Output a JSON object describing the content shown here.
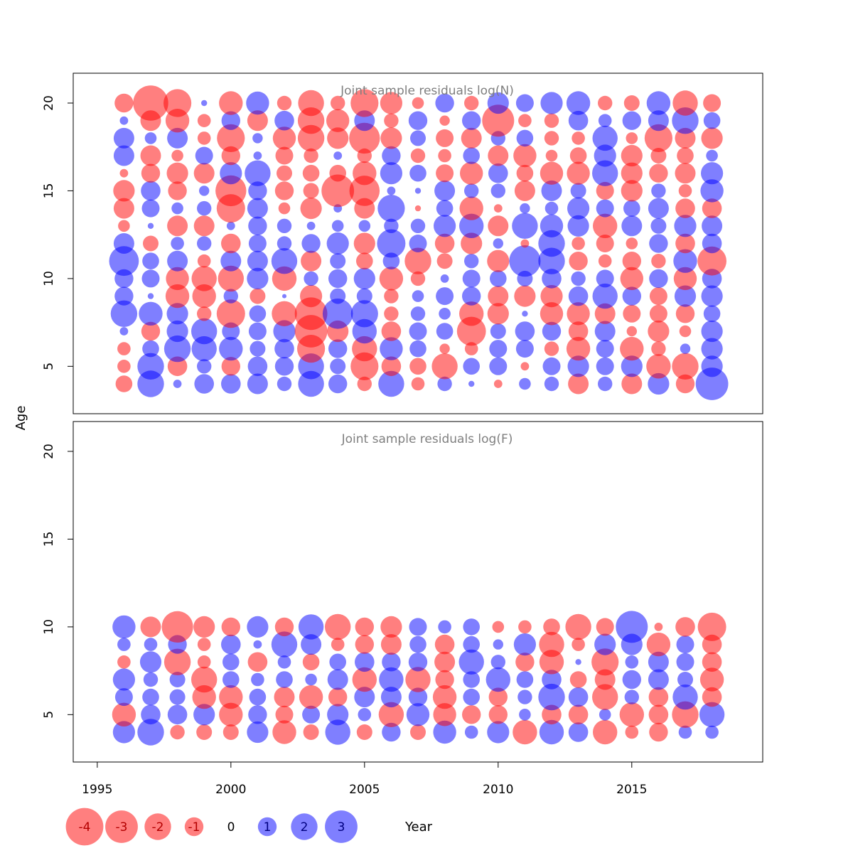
{
  "chart_data": {
    "type": "scatter",
    "subtype": "bubble",
    "xlabel": "Year",
    "ylabel": "Age",
    "xlim": [
      1994.1,
      2019.9
    ],
    "x_ticks": [
      1995,
      2000,
      2005,
      2010,
      2015
    ],
    "x_tick_labels": [
      "1995",
      "2000",
      "2005",
      "2010",
      "2015"
    ],
    "y_ticks": [
      5,
      10,
      15,
      20
    ],
    "y_tick_labels": [
      "5",
      "10",
      "15",
      "20"
    ],
    "colors": {
      "negative": "#ff0000",
      "positive": "#0000ff",
      "opacity": 0.5,
      "title": "#7f7f7f"
    },
    "years": [
      1996,
      1997,
      1998,
      1999,
      2000,
      2001,
      2002,
      2003,
      2004,
      2005,
      2006,
      2007,
      2008,
      2009,
      2010,
      2011,
      2012,
      2013,
      2014,
      2015,
      2016,
      2017,
      2018
    ],
    "legend": {
      "placement": "bottom",
      "entries": [
        {
          "label": "-4",
          "value": -4
        },
        {
          "label": "-3",
          "value": -3
        },
        {
          "label": "-2",
          "value": -2
        },
        {
          "label": "-1",
          "value": -1
        },
        {
          "label": "0",
          "value": 0
        },
        {
          "label": "1",
          "value": 1
        },
        {
          "label": "2",
          "value": 2
        },
        {
          "label": "3",
          "value": 3
        }
      ]
    },
    "panels": [
      {
        "title": "Joint sample residuals log(N)",
        "ylim": [
          2.3,
          21.7
        ],
        "ages": [
          4,
          5,
          6,
          7,
          8,
          9,
          10,
          11,
          12,
          13,
          14,
          15,
          16,
          17,
          18,
          19,
          20
        ],
        "residuals": [
          [
            -0.8,
            -0.5,
            -0.5,
            0.2,
            2.0,
            1.0,
            1.0,
            2.5,
            1.2,
            -0.4,
            -1.2,
            -1.3,
            -0.2,
            1.2,
            1.2,
            0.2,
            -1.0
          ],
          [
            2.0,
            2.0,
            0.8,
            -1.0,
            1.6,
            0.1,
            0.9,
            0.8,
            -0.7,
            0.1,
            0.9,
            1.1,
            -1.0,
            -1.2,
            0.4,
            -1.2,
            -3.5
          ],
          [
            0.2,
            -1.1,
            2.0,
            1.3,
            1.3,
            -1.6,
            -1.5,
            1.2,
            0.5,
            -1.2,
            0.4,
            -1.0,
            -1.3,
            -0.4,
            1.2,
            -1.6,
            -2.2
          ],
          [
            1.1,
            0.6,
            1.8,
            1.9,
            -0.6,
            -1.6,
            -1.8,
            -0.5,
            0.6,
            -1.2,
            0.6,
            0.3,
            -1.2,
            0.9,
            -0.5,
            -0.5,
            0.1
          ],
          [
            1.1,
            -1.0,
            1.6,
            0.9,
            -2.3,
            0.6,
            -1.9,
            1.2,
            -1.1,
            0.2,
            -2.3,
            -2.7,
            1.4,
            -1.0,
            -2.2,
            1.0,
            -1.6
          ],
          [
            1.2,
            1.1,
            0.7,
            0.9,
            0.8,
            -0.7,
            1.3,
            1.2,
            0.9,
            1.0,
            1.2,
            1.0,
            1.9,
            0.2,
            0.3,
            -1.2,
            1.5
          ],
          [
            0.6,
            1.0,
            1.1,
            1.4,
            -1.8,
            0.05,
            -1.7,
            1.9,
            0.6,
            0.6,
            -0.4,
            -1.0,
            -0.7,
            -0.9,
            -1.5,
            1.1,
            -0.6
          ],
          [
            1.9,
            1.9,
            -2.2,
            -3.0,
            -3.0,
            -1.4,
            0.6,
            -1.2,
            1.0,
            0.2,
            -1.3,
            -0.7,
            -0.8,
            -0.6,
            -2.0,
            -2.0,
            -1.9
          ],
          [
            1.0,
            0.7,
            1.0,
            -1.3,
            2.6,
            0.7,
            1.0,
            0.7,
            1.4,
            0.4,
            0.2,
            -3.0,
            -0.8,
            0.2,
            -1.3,
            -1.5,
            -0.6
          ],
          [
            -0.6,
            -2.2,
            -1.8,
            1.7,
            2.1,
            0.7,
            1.3,
            -0.8,
            -1.3,
            0.4,
            -1.2,
            -2.6,
            -1.6,
            -0.6,
            -2.7,
            1.2,
            -2.2
          ],
          [
            1.9,
            -1.1,
            1.5,
            -1.1,
            -0.6,
            -0.6,
            -1.6,
            0.8,
            2.3,
            0.6,
            2.1,
            0.2,
            1.4,
            1.0,
            -1.3,
            -0.6,
            -1.4
          ],
          [
            -0.5,
            -0.8,
            0.8,
            0.9,
            0.6,
            0.4,
            -0.6,
            -2.0,
            0.9,
            0.6,
            -0.1,
            0.1,
            0.8,
            -0.6,
            0.7,
            1.0,
            -0.4
          ],
          [
            0.6,
            -1.9,
            -0.3,
            0.8,
            0.4,
            0.9,
            0.2,
            -0.7,
            -1.1,
            1.4,
            0.8,
            1.2,
            -0.9,
            -0.5,
            -0.9,
            -0.3,
            1.0
          ],
          [
            0.1,
            0.8,
            -0.5,
            -2.4,
            -1.7,
            1.0,
            0.9,
            0.6,
            -1.3,
            1.7,
            -1.6,
            0.6,
            -1.5,
            0.8,
            -1.2,
            1.0,
            -0.6
          ],
          [
            -0.2,
            0.9,
            0.9,
            0.7,
            -1.3,
            -1.2,
            0.8,
            -1.4,
            0.3,
            -1.2,
            -0.2,
            0.6,
            1.1,
            -1.2,
            0.6,
            -2.9,
            1.3
          ],
          [
            0.4,
            -0.2,
            0.9,
            1.1,
            0.1,
            -1.3,
            0.7,
            2.8,
            -0.2,
            1.9,
            0.3,
            -1.2,
            -0.8,
            -1.5,
            0.8,
            -0.5,
            0.9
          ],
          [
            0.6,
            0.9,
            -0.6,
            1.0,
            -1.5,
            -1.4,
            1.1,
            2.0,
            2.0,
            1.5,
            0.5,
            1.2,
            -1.5,
            -0.4,
            -0.6,
            -0.6,
            1.4
          ],
          [
            -1.2,
            1.3,
            -1.6,
            -1.1,
            -1.5,
            1.1,
            0.6,
            -1.0,
            -0.5,
            1.3,
            1.4,
            0.7,
            -1.5,
            -0.8,
            -0.5,
            1.1,
            1.6
          ],
          [
            0.6,
            0.9,
            0.9,
            1.2,
            -1.2,
            1.8,
            0.9,
            -0.5,
            -0.9,
            -1.7,
            0.9,
            -0.9,
            1.9,
            1.4,
            1.8,
            0.5,
            -0.6
          ],
          [
            -1.2,
            1.3,
            -1.6,
            -0.3,
            -0.9,
            1.0,
            -1.5,
            -1.0,
            -0.4,
            1.2,
            0.8,
            -1.3,
            -1.3,
            -1.3,
            -0.4,
            1.0,
            -0.7
          ],
          [
            1.3,
            -1.7,
            -0.6,
            -1.3,
            -0.9,
            -0.9,
            1.0,
            -0.6,
            1.0,
            0.7,
            1.2,
            0.6,
            -1.0,
            -0.7,
            -2.2,
            1.2,
            1.6
          ],
          [
            -1.0,
            -2.0,
            0.3,
            -0.4,
            -1.0,
            1.3,
            -1.5,
            1.6,
            -1.1,
            1.4,
            -1.1,
            -0.5,
            -1.2,
            -0.8,
            -1.2,
            2.0,
            -1.8
          ],
          [
            3.0,
            1.3,
            1.3,
            1.3,
            0.8,
            1.3,
            1.1,
            -2.4,
            1.1,
            1.2,
            -1.1,
            1.5,
            1.4,
            0.4,
            -1.3,
            0.8,
            -0.9
          ]
        ]
      },
      {
        "title": "Joint sample residuals log(F)",
        "ylim": [
          2.3,
          21.7
        ],
        "ages": [
          4,
          5,
          6,
          7,
          8,
          9,
          10
        ],
        "residuals": [
          [
            1.4,
            -1.6,
            0.9,
            1.4,
            -0.5,
            0.5,
            1.5
          ],
          [
            2.0,
            1.1,
            0.8,
            0.6,
            1.3,
            0.5,
            -1.2
          ],
          [
            -0.6,
            1.1,
            0.7,
            0.7,
            -2.0,
            1.0,
            -2.8
          ],
          [
            -0.7,
            1.3,
            -1.6,
            -1.9,
            -0.5,
            -0.5,
            -1.3
          ],
          [
            -0.7,
            -1.6,
            -1.6,
            0.8,
            0.8,
            1.1,
            -1.0
          ],
          [
            1.3,
            1.0,
            0.8,
            0.5,
            -1.1,
            0.2,
            1.3
          ],
          [
            -1.6,
            -0.9,
            -1.2,
            0.8,
            0.5,
            1.9,
            -1.0
          ],
          [
            -0.7,
            0.9,
            -1.6,
            0.4,
            -0.8,
            1.2,
            1.8
          ],
          [
            1.8,
            1.3,
            -1.0,
            1.2,
            0.8,
            -0.5,
            -1.9
          ],
          [
            -0.7,
            0.5,
            1.2,
            -1.7,
            1.1,
            -1.0,
            -1.0
          ],
          [
            1.0,
            -1.8,
            1.2,
            1.7,
            1.0,
            -1.2,
            -1.3
          ],
          [
            -0.7,
            1.5,
            1.0,
            -1.8,
            1.0,
            0.8,
            0.9
          ],
          [
            1.5,
            -1.5,
            -1.6,
            -1.0,
            -1.2,
            -1.1,
            0.5
          ],
          [
            0.5,
            -1.0,
            0.8,
            0.8,
            1.8,
            0.8,
            0.8
          ],
          [
            1.4,
            -1.0,
            -1.0,
            1.7,
            0.6,
            0.3,
            -0.4
          ],
          [
            -1.7,
            0.4,
            0.6,
            0.8,
            -1.0,
            1.4,
            -0.5
          ],
          [
            1.7,
            -1.1,
            2.0,
            1.1,
            -1.7,
            -1.8,
            -0.8
          ],
          [
            1.1,
            -1.1,
            1.1,
            -0.8,
            0.1,
            -0.5,
            -1.9
          ],
          [
            -1.7,
            0.4,
            -1.9,
            -1.2,
            -2.1,
            1.3,
            -0.9
          ],
          [
            -0.5,
            -1.7,
            0.6,
            1.0,
            0.5,
            1.3,
            2.9
          ],
          [
            -1.0,
            -1.1,
            -1.1,
            1.2,
            1.2,
            -1.6,
            -0.2
          ],
          [
            0.5,
            -2.0,
            1.8,
            0.7,
            0.9,
            0.9,
            -1.1
          ],
          [
            0.5,
            1.8,
            -1.1,
            -1.6,
            -1.1,
            -1.1,
            -2.3
          ]
        ]
      }
    ]
  }
}
